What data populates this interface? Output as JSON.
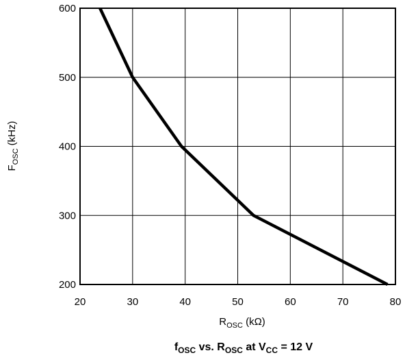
{
  "chart_data": {
    "type": "line",
    "title": {
      "parts": [
        {
          "text": "f",
          "sub": "OSC"
        },
        {
          "text": " vs. R",
          "sub": "OSC"
        },
        {
          "text": " at V",
          "sub": "CC"
        },
        {
          "text": " = 12 V",
          "sub": ""
        }
      ]
    },
    "xlabel": {
      "main": "R",
      "sub": "OSC",
      "unit": " (kΩ)"
    },
    "ylabel": {
      "main": "F",
      "sub": "OSC",
      "unit": "  (kHz)"
    },
    "xlim": [
      20,
      80
    ],
    "ylim": [
      200,
      600
    ],
    "xticks": [
      "20",
      "30",
      "40",
      "50",
      "60",
      "70",
      "80"
    ],
    "yticks": [
      "200",
      "300",
      "400",
      "500",
      "600"
    ],
    "grid": true,
    "line_color": "#000000",
    "series": [
      {
        "x": [
          23.8,
          30,
          39.3,
          53,
          78.5
        ],
        "y": [
          600,
          500,
          400,
          300,
          200
        ]
      }
    ]
  }
}
